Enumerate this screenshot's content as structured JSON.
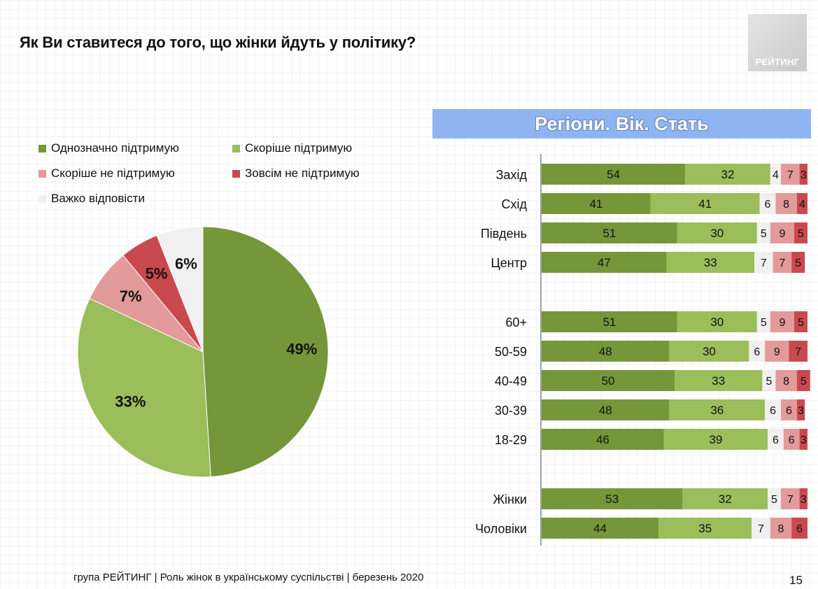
{
  "title": "Як Ви ставитеся до того, що жінки йдуть у політику?",
  "logo_text": "РЕЙТИНГ",
  "banner": "Регіони. Вік. Стать",
  "footer": "група РЕЙТИНГ | Роль жінок в українському суспільстві | березень 2020",
  "page_number": "15",
  "colors": {
    "definitely_support": "#76963a",
    "rather_support": "#9bbd5a",
    "rather_not": "#e39a9a",
    "not_at_all": "#c9494e",
    "hard_to_say": "#f0f0f0",
    "banner": "#8eb4f2"
  },
  "legend": [
    {
      "label": "Однозначно підтримую",
      "color": "#76963a"
    },
    {
      "label": "Скоріше підтримую",
      "color": "#9bbd5a"
    },
    {
      "label": "Скоріше не підтримую",
      "color": "#e39a9a"
    },
    {
      "label": "Зовсім не підтримую",
      "color": "#c9494e"
    },
    {
      "label": "Важко відповісти",
      "color": "#f0f0f0"
    }
  ],
  "chart_data": [
    {
      "type": "pie",
      "categories": [
        "Однозначно підтримую",
        "Скоріше підтримую",
        "Скоріше не підтримую",
        "Зовсім не підтримую",
        "Важко відповісти"
      ],
      "values": [
        49,
        33,
        7,
        5,
        6
      ],
      "labels": [
        "49%",
        "33%",
        "7%",
        "5%",
        "6%"
      ],
      "colors": [
        "#76963a",
        "#9bbd5a",
        "#e39a9a",
        "#c9494e",
        "#f0f0f0"
      ]
    },
    {
      "type": "bar",
      "orientation": "horizontal",
      "stacked": true,
      "title": "Регіони. Вік. Стать",
      "groups": [
        [
          "Захід",
          "Схід",
          "Південь",
          "Центр"
        ],
        [
          "60+",
          "50-59",
          "40-49",
          "30-39",
          "18-29"
        ],
        [
          "Жінки",
          "Чоловіки"
        ]
      ],
      "categories": [
        "Захід",
        "Схід",
        "Південь",
        "Центр",
        "60+",
        "50-59",
        "40-49",
        "30-39",
        "18-29",
        "Жінки",
        "Чоловіки"
      ],
      "series": [
        {
          "name": "Однозначно підтримую",
          "color": "#76963a",
          "values": [
            54,
            41,
            51,
            47,
            51,
            48,
            50,
            48,
            46,
            53,
            44
          ]
        },
        {
          "name": "Скоріше підтримую",
          "color": "#9bbd5a",
          "values": [
            32,
            41,
            30,
            33,
            30,
            30,
            33,
            36,
            39,
            32,
            35
          ]
        },
        {
          "name": "Важко відповісти",
          "color": "#f0f0f0",
          "values": [
            4,
            6,
            5,
            7,
            5,
            6,
            5,
            6,
            6,
            5,
            7
          ]
        },
        {
          "name": "Скоріше не підтримую",
          "color": "#e39a9a",
          "values": [
            7,
            8,
            9,
            7,
            9,
            9,
            8,
            6,
            6,
            7,
            8
          ]
        },
        {
          "name": "Зовсім не підтримую",
          "color": "#c9494e",
          "values": [
            3,
            4,
            5,
            5,
            5,
            7,
            5,
            3,
            3,
            3,
            6
          ]
        }
      ]
    }
  ]
}
